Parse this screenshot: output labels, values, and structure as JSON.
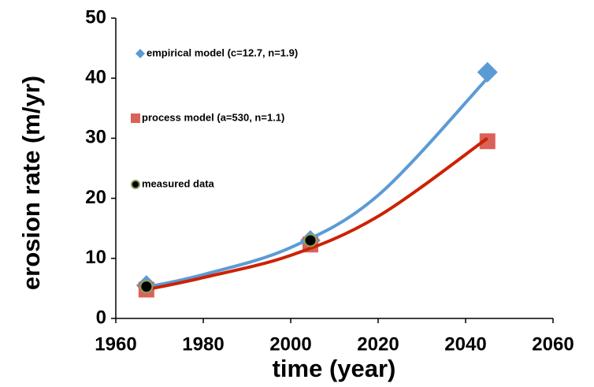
{
  "chart_data": {
    "type": "scatter",
    "xlabel": "time (year)",
    "ylabel": "erosion rate (m/yr)",
    "xlim": [
      1960,
      2060
    ],
    "xticks": [
      1960,
      1980,
      2000,
      2020,
      2040,
      2060
    ],
    "ylim": [
      0,
      50
    ],
    "yticks": [
      0,
      10,
      20,
      30,
      40,
      50
    ],
    "grid": false,
    "series": [
      {
        "type": "line",
        "color": "#5b9bd5",
        "x": [
          1967,
          1980,
          2000,
          2020,
          2045
        ],
        "values": [
          5.2,
          7.3,
          11.8,
          20.5,
          40
        ]
      },
      {
        "type": "line",
        "color": "#cc2200",
        "x": [
          1967,
          1980,
          2000,
          2020,
          2045
        ],
        "values": [
          4.8,
          6.8,
          10.5,
          17,
          30
        ]
      },
      {
        "name": "empirical model (c=12.7, n=1.9)",
        "marker": "diamond",
        "color": "#5b9bd5",
        "x": [
          1967,
          2004.5,
          2045
        ],
        "values": [
          5.5,
          13,
          41
        ]
      },
      {
        "name": "process model (a=530, n=1.1)",
        "marker": "square",
        "color": "#d9625a",
        "x": [
          1967,
          2004.5,
          2045
        ],
        "values": [
          4.8,
          12.3,
          29.5
        ]
      },
      {
        "name": "measured data",
        "marker": "circle",
        "color": "#000000",
        "x": [
          1967,
          2004.5
        ],
        "values": [
          5.3,
          13
        ]
      }
    ]
  }
}
